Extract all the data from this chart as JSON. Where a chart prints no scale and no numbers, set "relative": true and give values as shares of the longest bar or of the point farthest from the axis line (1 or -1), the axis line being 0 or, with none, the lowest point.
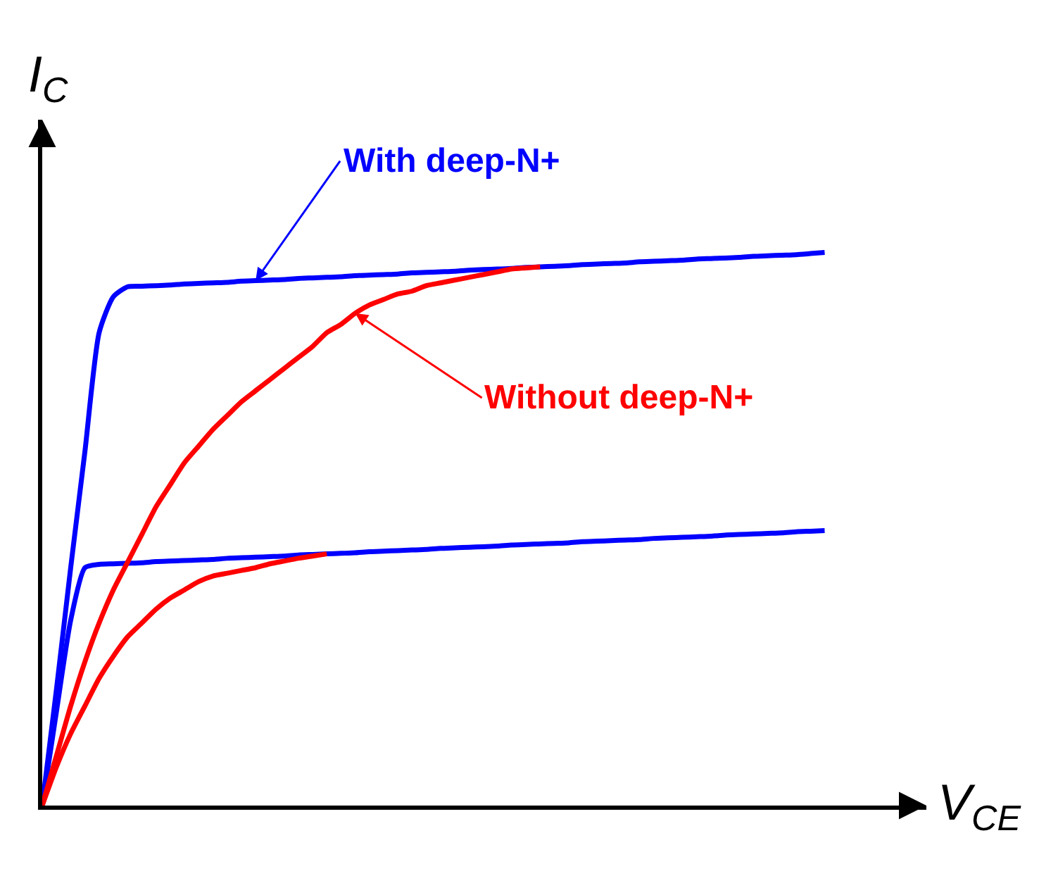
{
  "chart_data": {
    "type": "line",
    "relative": true,
    "xlabel": "V$_{CE}$",
    "ylabel": "I$_{C}$",
    "legend": false,
    "marker": "none",
    "line_style": "solid",
    "categories": [
      null,
      null,
      null,
      null,
      null,
      null,
      null,
      null,
      null,
      null,
      null,
      null,
      null,
      null,
      null,
      null,
      null,
      null,
      null,
      null,
      null,
      null,
      null,
      null,
      null,
      null,
      null,
      null,
      null,
      null,
      null,
      null,
      null,
      null,
      null,
      null,
      null,
      null,
      null,
      null,
      null,
      null,
      null,
      null,
      null,
      null,
      null,
      null,
      null,
      null,
      null,
      null,
      null,
      null,
      null,
      null
    ],
    "series": [
      {
        "name": "With deep-N+",
        "color": "#0000ff",
        "values": [
          0,
          0.21,
          0.43,
          0.64,
          0.855,
          0.92,
          0.938,
          0.939,
          0.94,
          0.941,
          0.943,
          0.944,
          0.945,
          0.946,
          0.948,
          0.949,
          0.95,
          0.951,
          0.953,
          0.954,
          0.955,
          0.956,
          0.958,
          0.959,
          0.96,
          0.961,
          0.963,
          0.964,
          0.965,
          0.966,
          0.968,
          0.969,
          0.97,
          0.971,
          0.973,
          0.974,
          0.975,
          0.976,
          0.978,
          0.979,
          0.98,
          0.981,
          0.983,
          0.984,
          0.985,
          0.986,
          0.988,
          0.989,
          0.99,
          0.991,
          0.993,
          0.994,
          0.995,
          0.996,
          0.998,
          1.0
        ]
      },
      {
        "color": "#0000ff",
        "values": [
          0,
          0.17,
          0.335,
          0.43,
          0.436,
          0.437,
          0.438,
          0.439,
          0.441,
          0.442,
          0.443,
          0.444,
          0.445,
          0.447,
          0.448,
          0.449,
          0.45,
          0.451,
          0.453,
          0.454,
          0.455,
          0.456,
          0.457,
          0.459,
          0.46,
          0.461,
          0.462,
          0.463,
          0.465,
          0.466,
          0.467,
          0.468,
          0.469,
          0.471,
          0.472,
          0.473,
          0.474,
          0.475,
          0.477,
          0.478,
          0.479,
          0.48,
          0.481,
          0.483,
          0.484,
          0.485,
          0.486,
          0.487,
          0.489,
          0.49,
          0.491,
          0.492,
          0.493,
          0.495,
          0.496,
          0.497
        ]
      },
      {
        "name": "Without deep-N+",
        "color": "#ff0000",
        "values": [
          0,
          0.09,
          0.18,
          0.26,
          0.33,
          0.39,
          0.44,
          0.49,
          0.54,
          0.58,
          0.62,
          0.65,
          0.68,
          0.705,
          0.73,
          0.75,
          0.77,
          0.79,
          0.81,
          0.83,
          0.855,
          0.87,
          0.89,
          0.905,
          0.915,
          0.925,
          0.93,
          0.94,
          0.945,
          0.95,
          0.955,
          0.96,
          0.965,
          0.97,
          0.972,
          0.974,
          null,
          null,
          null,
          null,
          null,
          null,
          null,
          null,
          null,
          null,
          null,
          null,
          null,
          null,
          null,
          null,
          null,
          null,
          null,
          null
        ]
      },
      {
        "color": "#ff0000",
        "values": [
          0,
          0.07,
          0.13,
          0.18,
          0.23,
          0.27,
          0.305,
          0.33,
          0.355,
          0.375,
          0.39,
          0.405,
          0.415,
          0.42,
          0.425,
          0.43,
          0.437,
          0.442,
          0.447,
          0.451,
          0.455,
          null,
          null,
          null,
          null,
          null,
          null,
          null,
          null,
          null,
          null,
          null,
          null,
          null,
          null,
          null,
          null,
          null,
          null,
          null,
          null,
          null,
          null,
          null,
          null,
          null,
          null,
          null,
          null,
          null,
          null,
          null,
          null,
          null,
          null,
          null
        ]
      }
    ]
  }
}
